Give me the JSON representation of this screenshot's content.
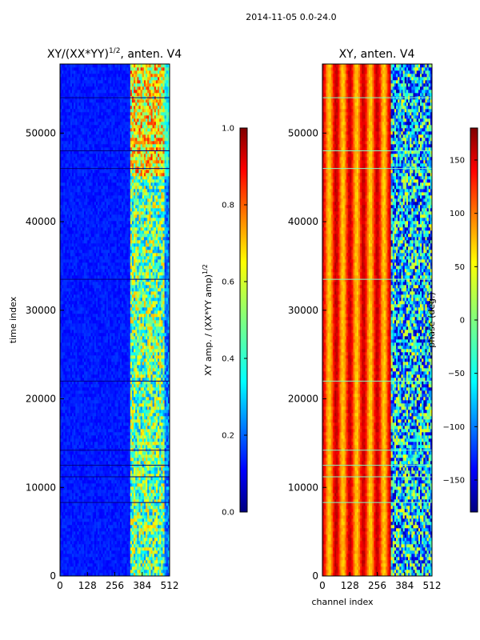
{
  "suptitle": "2014-11-05 0.0-24.0",
  "chart_data": [
    {
      "type": "heatmap",
      "title_main": "XY/(XX*YY)",
      "title_sup": "1/2",
      "title_tail": ", anten. V4",
      "xlabel": "",
      "ylabel": "time index",
      "xlim": [
        0,
        512
      ],
      "ylim": [
        0,
        57800
      ],
      "xticks": [
        0,
        128,
        256,
        384,
        512
      ],
      "yticks": [
        0,
        10000,
        20000,
        30000,
        40000,
        50000
      ],
      "colormap": "jet",
      "colorbar": {
        "label_main": "XY amp. / (XX*YY amp)",
        "label_sup": "1/2",
        "range": [
          0.0,
          1.0
        ],
        "ticks": [
          "0.0",
          "0.2",
          "0.4",
          "0.6",
          "0.8",
          "1.0"
        ],
        "tick_values": [
          0.0,
          0.2,
          0.4,
          0.6,
          0.8,
          1.0
        ]
      },
      "description_values": {
        "channels_0_320_typical": 0.12,
        "channels_320_512_typical": 0.5,
        "bright_band_start_channel": 330
      }
    },
    {
      "type": "heatmap",
      "title_main": "XY, anten. V4",
      "xlabel": "channel index",
      "ylabel": "",
      "xlim": [
        0,
        512
      ],
      "ylim": [
        0,
        57800
      ],
      "xticks": [
        0,
        128,
        256,
        384,
        512
      ],
      "yticks": [
        0,
        10000,
        20000,
        30000,
        40000,
        50000
      ],
      "colormap": "jet",
      "colorbar": {
        "label_main": "phase (deg.)",
        "range": [
          -180,
          180
        ],
        "ticks": [
          "−150",
          "−100",
          "−50",
          "0",
          "50",
          "100",
          "150"
        ],
        "tick_values": [
          -150,
          -100,
          -50,
          0,
          50,
          100,
          150
        ]
      },
      "description_values": {
        "channels_0_320_typical_deg": 110,
        "channels_320_512_typical_deg": -60,
        "stripe_period_channels": 64
      }
    }
  ],
  "colors": {
    "jet": [
      "#00007f",
      "#0000ff",
      "#007fff",
      "#00ffff",
      "#7fff7f",
      "#ffff00",
      "#ff7f00",
      "#ff0000",
      "#7f0000"
    ]
  }
}
